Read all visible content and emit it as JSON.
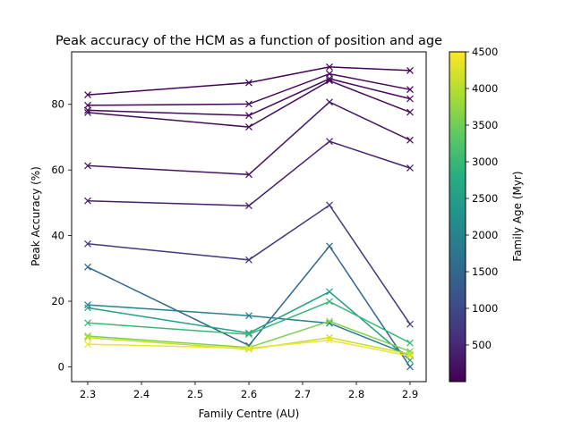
{
  "chart_data": {
    "type": "line",
    "title": "Peak accuracy of the HCM as a function of position and age",
    "xlabel": "Family Centre (AU)",
    "ylabel": "Peak Accuracy (%)",
    "xlim": [
      2.27,
      2.93
    ],
    "ylim": [
      -4.5,
      96
    ],
    "x": [
      2.3,
      2.6,
      2.75,
      2.9
    ],
    "xticks": [
      2.3,
      2.4,
      2.5,
      2.6,
      2.7,
      2.8,
      2.9
    ],
    "yticks": [
      0,
      20,
      40,
      60,
      80
    ],
    "marker": "x",
    "grid": false,
    "colorbar": {
      "label": "Family Age (Myr)",
      "range": [
        0,
        4500
      ],
      "ticks": [
        500,
        1000,
        1500,
        2000,
        2500,
        3000,
        3500,
        4000,
        4500
      ],
      "colormap": "viridis"
    },
    "series": [
      {
        "age": 30,
        "values": [
          82.9,
          86.6,
          91.4,
          90.3
        ]
      },
      {
        "age": 60,
        "values": [
          79.7,
          80.1,
          89.3,
          84.5
        ]
      },
      {
        "age": 90,
        "values": [
          78.2,
          76.6,
          87.8,
          81.7
        ]
      },
      {
        "age": 120,
        "values": [
          77.5,
          73.1,
          87.2,
          77.6
        ]
      },
      {
        "age": 250,
        "values": [
          61.3,
          58.6,
          80.7,
          69.1
        ]
      },
      {
        "age": 380,
        "values": [
          50.6,
          49.1,
          68.7,
          60.6
        ]
      },
      {
        "age": 700,
        "values": [
          37.5,
          32.6,
          49.3,
          13.0
        ]
      },
      {
        "age": 1500,
        "values": [
          30.4,
          6.5,
          36.8,
          0.0
        ]
      },
      {
        "age": 1900,
        "values": [
          18.9,
          15.6,
          13.3,
          3.5
        ]
      },
      {
        "age": 2500,
        "values": [
          18.0,
          10.3,
          22.9,
          2.0
        ]
      },
      {
        "age": 3000,
        "values": [
          13.4,
          9.9,
          19.9,
          7.3
        ]
      },
      {
        "age": 3600,
        "values": [
          9.4,
          5.9,
          13.9,
          4.7
        ]
      },
      {
        "age": 4100,
        "values": [
          8.9,
          5.4,
          8.9,
          3.9
        ]
      },
      {
        "age": 4400,
        "values": [
          6.9,
          5.7,
          8.1,
          3.3
        ]
      }
    ]
  }
}
